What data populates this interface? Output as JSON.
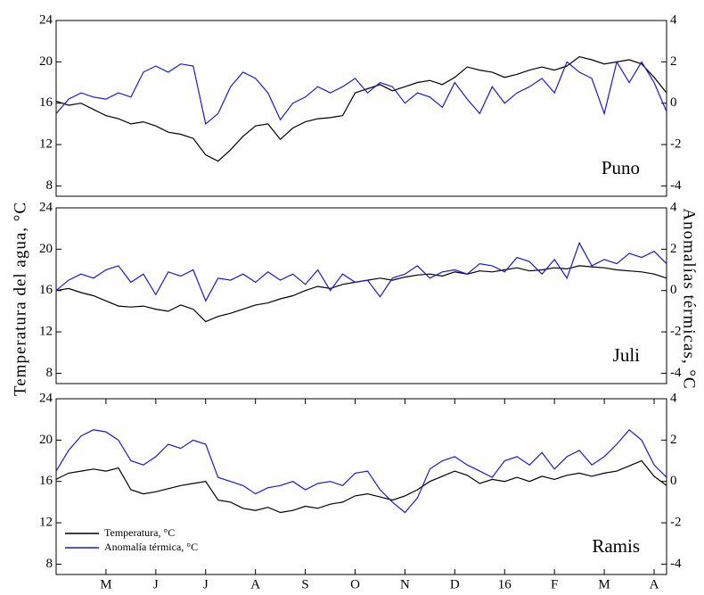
{
  "ylabel": "Temperatura del agua, °C",
  "y2label": "Anomalías térmicas, °C",
  "chart_data": [
    {
      "type": "line",
      "annotation": "Puno",
      "ylim": [
        7,
        24
      ],
      "yticks": [
        8,
        12,
        16,
        20,
        24
      ],
      "y2lim": [
        -4.5,
        4
      ],
      "y2ticks": [
        -4,
        -2,
        0,
        2,
        4
      ],
      "series": [
        {
          "color": "#000000",
          "values": [
            16.2,
            15.8,
            16.0,
            15.4,
            14.8,
            14.5,
            14.0,
            14.2,
            13.8,
            13.2,
            13.0,
            12.6,
            11.0,
            10.4,
            11.5,
            12.8,
            13.8,
            14.0,
            12.5,
            13.6,
            14.2,
            14.5,
            14.6,
            14.8,
            17.0,
            17.4,
            17.8,
            17.2,
            17.6,
            18.0,
            18.2,
            17.8,
            18.5,
            19.5,
            19.2,
            19.0,
            18.5,
            18.8,
            19.2,
            19.5,
            19.2,
            19.6,
            20.5,
            20.2,
            19.8,
            20.0,
            20.2,
            19.8,
            18.5,
            17.0
          ]
        },
        {
          "color": "#1a1acc",
          "axis": "y2",
          "values": [
            -0.5,
            0.2,
            0.5,
            0.3,
            0.2,
            0.5,
            0.3,
            1.5,
            1.8,
            1.5,
            1.9,
            1.8,
            -1.0,
            -0.5,
            0.8,
            1.5,
            1.2,
            0.5,
            -0.8,
            0.0,
            0.3,
            0.8,
            0.5,
            0.8,
            1.2,
            0.5,
            1.0,
            0.8,
            0.0,
            0.5,
            0.3,
            -0.2,
            1.0,
            0.2,
            -0.5,
            0.8,
            0.0,
            0.5,
            0.8,
            1.2,
            0.5,
            2.0,
            1.5,
            1.2,
            -0.5,
            2.0,
            1.0,
            2.0,
            1.0,
            -0.4
          ]
        }
      ]
    },
    {
      "type": "line",
      "annotation": "Juli",
      "ylim": [
        7,
        24
      ],
      "yticks": [
        8,
        12,
        16,
        20,
        24
      ],
      "y2lim": [
        -4.5,
        4
      ],
      "y2ticks": [
        -4,
        -2,
        0,
        2,
        4
      ],
      "series": [
        {
          "color": "#000000",
          "values": [
            16.0,
            16.2,
            15.8,
            15.5,
            15.0,
            14.5,
            14.4,
            14.5,
            14.2,
            14.0,
            14.6,
            14.2,
            13.0,
            13.5,
            13.8,
            14.2,
            14.6,
            14.8,
            15.2,
            15.5,
            16.0,
            16.4,
            16.2,
            16.6,
            16.8,
            17.0,
            17.2,
            17.0,
            17.3,
            17.5,
            17.6,
            17.4,
            17.8,
            17.6,
            17.9,
            17.8,
            18.0,
            18.2,
            17.9,
            18.0,
            18.2,
            18.1,
            18.4,
            18.3,
            18.2,
            18.0,
            17.9,
            17.8,
            17.6,
            17.2
          ]
        },
        {
          "color": "#1a1acc",
          "axis": "y2",
          "values": [
            0.0,
            0.5,
            0.8,
            0.6,
            1.0,
            1.2,
            0.4,
            0.8,
            -0.2,
            0.9,
            0.7,
            1.0,
            -0.5,
            0.6,
            0.5,
            0.8,
            0.4,
            0.9,
            0.5,
            0.8,
            0.3,
            1.0,
            0.0,
            0.8,
            0.4,
            0.5,
            -0.3,
            0.6,
            0.8,
            1.2,
            0.6,
            0.9,
            1.0,
            0.8,
            1.3,
            1.2,
            0.9,
            1.6,
            1.4,
            0.8,
            1.5,
            0.6,
            2.3,
            1.2,
            1.5,
            1.3,
            1.8,
            1.6,
            1.9,
            1.3
          ]
        }
      ]
    },
    {
      "type": "line",
      "annotation": "Ramis",
      "legend": "lower left",
      "categories": [
        null,
        null,
        null,
        null,
        "M",
        null,
        null,
        null,
        "J",
        null,
        null,
        null,
        "J",
        null,
        null,
        null,
        "A",
        null,
        null,
        null,
        "S",
        null,
        null,
        null,
        "O",
        null,
        null,
        null,
        "N",
        null,
        null,
        null,
        "D",
        null,
        null,
        null,
        "16",
        null,
        null,
        null,
        "F",
        null,
        null,
        null,
        "M",
        null,
        null,
        null,
        "A",
        null
      ],
      "ylim": [
        7,
        24
      ],
      "yticks": [
        8,
        12,
        16,
        20,
        24
      ],
      "y2lim": [
        -4.5,
        4
      ],
      "y2ticks": [
        -4,
        -2,
        0,
        2,
        4
      ],
      "series": [
        {
          "name": "Temperatura, °C",
          "color": "#000000",
          "values": [
            16.2,
            16.8,
            17.0,
            17.2,
            17.0,
            17.3,
            15.2,
            14.8,
            15.0,
            15.3,
            15.6,
            15.8,
            16.0,
            14.2,
            14.0,
            13.4,
            13.2,
            13.5,
            13.0,
            13.2,
            13.6,
            13.4,
            13.8,
            14.0,
            14.6,
            14.8,
            14.5,
            14.2,
            14.6,
            15.2,
            16.0,
            16.5,
            17.0,
            16.6,
            15.8,
            16.2,
            16.0,
            16.4,
            16.0,
            16.5,
            16.2,
            16.6,
            16.8,
            16.5,
            16.8,
            17.0,
            17.5,
            18.0,
            16.5,
            15.6
          ]
        },
        {
          "name": "Anomalía térmica, °C",
          "color": "#1a1acc",
          "axis": "y2",
          "values": [
            0.5,
            1.5,
            2.2,
            2.5,
            2.4,
            2.0,
            1.0,
            0.8,
            1.2,
            1.8,
            1.6,
            2.0,
            1.8,
            0.2,
            0.0,
            -0.2,
            -0.6,
            -0.3,
            -0.2,
            0.0,
            -0.4,
            -0.1,
            0.0,
            -0.2,
            0.4,
            0.5,
            -0.4,
            -1.0,
            -1.5,
            -0.8,
            0.6,
            1.0,
            1.2,
            0.8,
            0.5,
            0.2,
            1.0,
            1.2,
            0.8,
            1.4,
            0.6,
            1.2,
            1.5,
            0.8,
            1.2,
            1.8,
            2.5,
            2.0,
            0.8,
            0.2
          ]
        }
      ]
    }
  ]
}
